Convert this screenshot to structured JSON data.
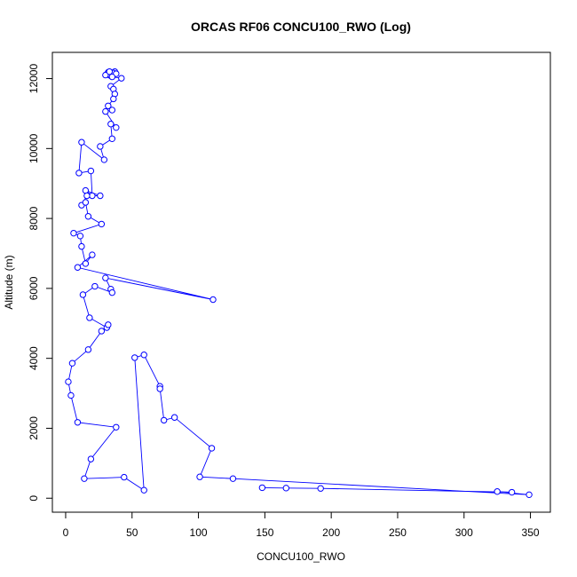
{
  "chart_data": {
    "type": "line",
    "title": "ORCAS RF06 CONCU100_RWO (Log)",
    "xlabel": "CONCU100_RWO",
    "ylabel": "Altitude (m)",
    "xlim": [
      -10,
      365
    ],
    "ylim": [
      -400,
      12750
    ],
    "xticks": [
      0,
      50,
      100,
      150,
      200,
      250,
      300,
      350
    ],
    "yticks": [
      0,
      2000,
      4000,
      6000,
      8000,
      10000,
      12000
    ],
    "grid": false,
    "legend": "none",
    "series": [
      {
        "color": "#0000ff",
        "markers": "open-circle",
        "points": [
          [
            32,
            12180
          ],
          [
            33,
            12100
          ],
          [
            35,
            12150
          ],
          [
            37,
            12200
          ],
          [
            31,
            12120
          ],
          [
            34,
            12080
          ],
          [
            36,
            12160
          ],
          [
            38,
            12140
          ],
          [
            30,
            12100
          ],
          [
            33,
            12200
          ],
          [
            35,
            12050
          ],
          [
            42,
            12010
          ],
          [
            34,
            11780
          ],
          [
            36,
            11700
          ],
          [
            37,
            11560
          ],
          [
            36,
            11420
          ],
          [
            32,
            11220
          ],
          [
            35,
            11100
          ],
          [
            30,
            11060
          ],
          [
            38,
            10600
          ],
          [
            34,
            10700
          ],
          [
            35,
            10280
          ],
          [
            26,
            10060
          ],
          [
            29,
            9680
          ],
          [
            12,
            10180
          ],
          [
            10,
            9300
          ],
          [
            19,
            9360
          ],
          [
            20,
            8650
          ],
          [
            15,
            8800
          ],
          [
            26,
            8650
          ],
          [
            16,
            8650
          ],
          [
            12,
            8380
          ],
          [
            15,
            8460
          ],
          [
            17,
            8060
          ],
          [
            27,
            7840
          ],
          [
            6,
            7580
          ],
          [
            11,
            7500
          ],
          [
            12,
            7200
          ],
          [
            15,
            6710
          ],
          [
            20,
            6960
          ],
          [
            9,
            6600
          ],
          [
            111,
            5680
          ],
          [
            30,
            6300
          ],
          [
            34,
            5980
          ],
          [
            35,
            5880
          ],
          [
            22,
            6060
          ],
          [
            13,
            5820
          ],
          [
            18,
            5160
          ],
          [
            31,
            4880
          ],
          [
            32,
            4960
          ],
          [
            27,
            4780
          ],
          [
            17,
            4250
          ],
          [
            5,
            3860
          ],
          [
            2,
            3330
          ],
          [
            4,
            2940
          ],
          [
            9,
            2170
          ],
          [
            38,
            2030
          ],
          [
            19,
            1120
          ],
          [
            14,
            560
          ],
          [
            44,
            600
          ],
          [
            59,
            230
          ],
          [
            52,
            4020
          ],
          [
            59,
            4100
          ],
          [
            71,
            3200
          ],
          [
            71,
            3130
          ],
          [
            74,
            2230
          ],
          [
            82,
            2310
          ],
          [
            110,
            1430
          ],
          [
            101,
            610
          ],
          [
            126,
            560
          ],
          [
            349,
            100
          ],
          [
            325,
            190
          ],
          [
            336,
            170
          ],
          [
            192,
            280
          ],
          [
            166,
            290
          ],
          [
            148,
            300
          ]
        ]
      }
    ]
  }
}
